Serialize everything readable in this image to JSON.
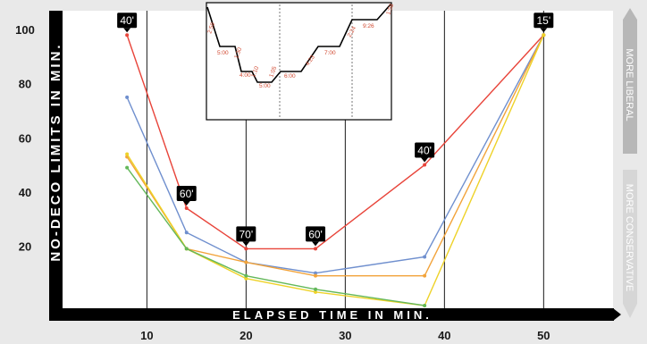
{
  "chart_data": {
    "type": "line",
    "xlabel": "ELAPSED TIME IN MIN.",
    "ylabel": "NO-DECO LIMITS IN MIN.",
    "xlim": [
      1.5,
      57
    ],
    "ylim": [
      -3,
      107
    ],
    "x_ticks": [
      10,
      20,
      30,
      40,
      50
    ],
    "y_ticks": [
      20,
      40,
      60,
      80,
      100
    ],
    "vlines": [
      10,
      20,
      30,
      40,
      50
    ],
    "series": [
      {
        "color": "#e8443a",
        "x": [
          8,
          14,
          20,
          27,
          38,
          50
        ],
        "y": [
          98,
          34,
          19,
          19,
          50,
          98
        ]
      },
      {
        "color": "#6f8fce",
        "x": [
          8,
          14,
          20,
          27,
          38,
          50
        ],
        "y": [
          75,
          25,
          14,
          10,
          16,
          98
        ]
      },
      {
        "color": "#f2a33a",
        "x": [
          8,
          14,
          20,
          27,
          38,
          50
        ],
        "y": [
          53,
          19,
          14,
          9,
          9,
          98
        ]
      },
      {
        "color": "#eed228",
        "x": [
          8,
          14,
          20,
          27,
          38,
          50
        ],
        "y": [
          54,
          19,
          8,
          3,
          -2,
          98
        ]
      },
      {
        "color": "#64b85a",
        "x": [
          8,
          14,
          20,
          27,
          38
        ],
        "y": [
          49,
          19,
          9,
          4,
          -2
        ]
      }
    ],
    "depth_labels": [
      {
        "text": "40'",
        "x": 8,
        "y": 98
      },
      {
        "text": "60'",
        "x": 14,
        "y": 34
      },
      {
        "text": "70'",
        "x": 20,
        "y": 19
      },
      {
        "text": "60'",
        "x": 27,
        "y": 19
      },
      {
        "text": "40'",
        "x": 38,
        "y": 50
      },
      {
        "text": "15'",
        "x": 50,
        "y": 98
      }
    ]
  },
  "inset_profile": {
    "labels": [
      "2:59",
      "5:00",
      "1:30",
      "4:00",
      "1:10",
      "5:00",
      "1:05",
      "6:00",
      "4:23",
      "7:00",
      "2:24",
      "9:26",
      "1:58"
    ]
  },
  "side_labels": {
    "top": "MORE LIBERAL",
    "bottom": "MORE CONSERVATIVE"
  }
}
